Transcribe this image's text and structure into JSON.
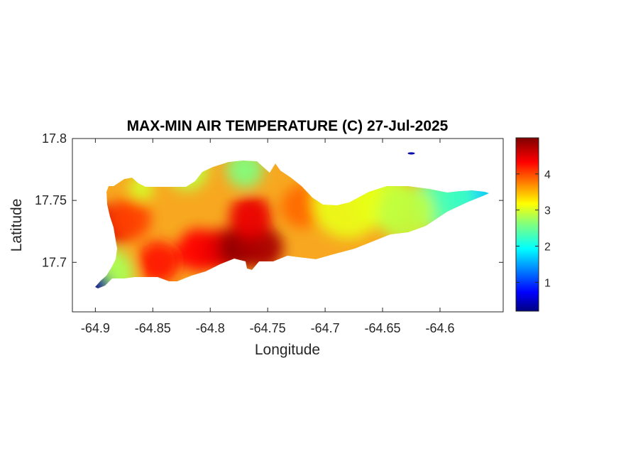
{
  "chart_data": {
    "type": "heatmap",
    "title": "MAX-MIN AIR TEMPERATURE (C) 27-Jul-2025",
    "xlabel": "Longitude",
    "ylabel": "Latitude",
    "xlim": [
      -64.92,
      -64.545
    ],
    "ylim": [
      17.66,
      17.8
    ],
    "xticks": [
      -64.9,
      -64.85,
      -64.8,
      -64.75,
      -64.7,
      -64.65,
      -64.6
    ],
    "xtick_labels": [
      "-64.9",
      "-64.85",
      "-64.8",
      "-64.75",
      "-64.7",
      "-64.65",
      "-64.6"
    ],
    "yticks": [
      17.7,
      17.75,
      17.8
    ],
    "ytick_labels": [
      "17.7",
      "17.75",
      "17.8"
    ],
    "colorbar": {
      "colormap": "jet",
      "range": [
        0.2,
        5.0
      ],
      "ticks": [
        1,
        2,
        3,
        4
      ],
      "tick_labels": [
        "1",
        "2",
        "3",
        "4"
      ]
    },
    "grid": false,
    "hotspots": [
      {
        "lon": -64.885,
        "lat": 17.73,
        "value": 4.6
      },
      {
        "lon": -64.87,
        "lat": 17.735,
        "value": 4.1
      },
      {
        "lon": -64.845,
        "lat": 17.7,
        "value": 4.3
      },
      {
        "lon": -64.81,
        "lat": 17.71,
        "value": 4.4
      },
      {
        "lon": -64.79,
        "lat": 17.71,
        "value": 4.5
      },
      {
        "lon": -64.775,
        "lat": 17.712,
        "value": 4.9
      },
      {
        "lon": -64.755,
        "lat": 17.712,
        "value": 4.8
      },
      {
        "lon": -64.765,
        "lat": 17.737,
        "value": 4.5
      },
      {
        "lon": -64.72,
        "lat": 17.745,
        "value": 3.9
      },
      {
        "lon": -64.89,
        "lat": 17.69,
        "value": 2.8
      },
      {
        "lon": -64.9,
        "lat": 17.68,
        "value": 0.3
      },
      {
        "lon": -64.65,
        "lat": 17.75,
        "value": 3.0
      },
      {
        "lon": -64.6,
        "lat": 17.748,
        "value": 2.4
      },
      {
        "lon": -64.565,
        "lat": 17.753,
        "value": 1.8
      },
      {
        "lon": -64.625,
        "lat": 17.788,
        "value": 0.4
      }
    ]
  }
}
